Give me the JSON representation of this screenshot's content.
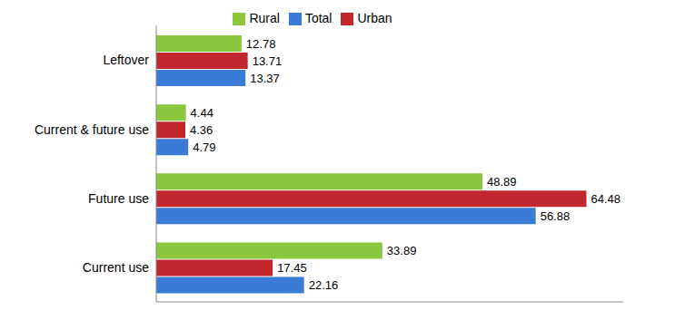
{
  "chart_data": {
    "type": "bar",
    "orientation": "horizontal",
    "categories": [
      "Leftover",
      "Current & future use",
      "Future use",
      "Current use"
    ],
    "series": [
      {
        "name": "Rural",
        "color": "#8cc63f",
        "values": [
          12.78,
          4.44,
          48.89,
          33.89
        ]
      },
      {
        "name": "Urban",
        "color": "#c1272d",
        "values": [
          13.71,
          4.36,
          64.48,
          17.45
        ]
      },
      {
        "name": "Total",
        "color": "#3a7bd5",
        "values": [
          13.37,
          4.79,
          56.88,
          22.16
        ]
      }
    ],
    "xlim": [
      0,
      70
    ],
    "data_labels": true,
    "legend": "top",
    "grid": false,
    "tick_labels": "y"
  }
}
